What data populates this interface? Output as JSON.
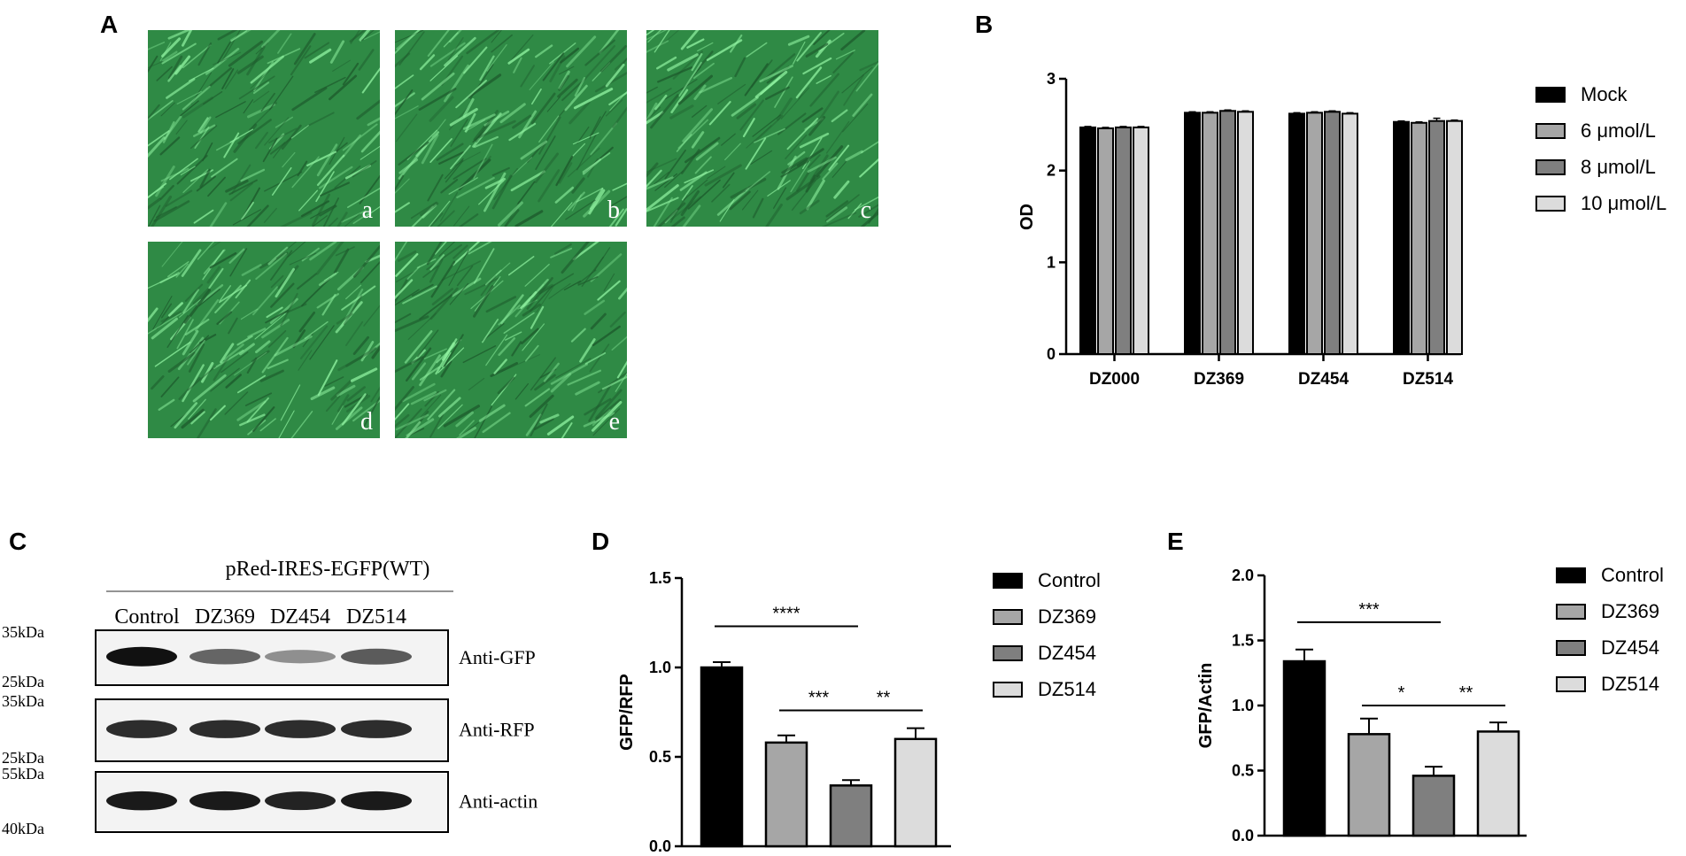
{
  "panels": {
    "A": {
      "letter": "A",
      "images": [
        {
          "label": "a"
        },
        {
          "label": "b"
        },
        {
          "label": "c"
        },
        {
          "label": "d"
        },
        {
          "label": "e"
        }
      ]
    },
    "B": {
      "letter": "B"
    },
    "C": {
      "letter": "C",
      "construct": "pRed-IRES-EGFP(WT)",
      "lanes": [
        "Control",
        "DZ369",
        "DZ454",
        "DZ514"
      ],
      "blots": [
        {
          "label": "Anti-GFP",
          "mw_top": "35kDa",
          "mw_bottom": "25kDa",
          "intensities": [
            1.0,
            0.55,
            0.32,
            0.6
          ]
        },
        {
          "label": "Anti-RFP",
          "mw_top": "35kDa",
          "mw_bottom": "25kDa",
          "intensities": [
            0.85,
            0.85,
            0.85,
            0.85
          ]
        },
        {
          "label": "Anti-actin",
          "mw_top": "55kDa",
          "mw_bottom": "40kDa",
          "intensities": [
            0.95,
            0.95,
            0.9,
            0.95
          ]
        }
      ]
    },
    "D": {
      "letter": "D"
    },
    "E": {
      "letter": "E"
    }
  },
  "colors": {
    "black": "#000000",
    "light_gray": "#a6a6a6",
    "dark_gray": "#7f7f7f",
    "lightest_gray": "#dcdcdc",
    "cell_green": "#2f8a45"
  },
  "chart_data": [
    {
      "id": "B",
      "type": "bar",
      "ylabel": "OD",
      "xlabel": "",
      "ylim": [
        0,
        3
      ],
      "yticks": [
        "0",
        "1",
        "2",
        "3"
      ],
      "categories": [
        "DZ000",
        "DZ369",
        "DZ454",
        "DZ514"
      ],
      "series": [
        {
          "name": "Mock",
          "values": [
            2.47,
            2.63,
            2.62,
            2.53
          ],
          "err": [
            0.01,
            0.01,
            0.01,
            0.01
          ],
          "color": "#000000"
        },
        {
          "name": "6 μmol/L",
          "values": [
            2.46,
            2.63,
            2.63,
            2.52
          ],
          "err": [
            0.01,
            0.01,
            0.01,
            0.01
          ],
          "color": "#a6a6a6"
        },
        {
          "name": "8 μmol/L",
          "values": [
            2.47,
            2.65,
            2.64,
            2.54
          ],
          "err": [
            0.01,
            0.01,
            0.01,
            0.03
          ],
          "color": "#7f7f7f"
        },
        {
          "name": "10 μmol/L",
          "values": [
            2.47,
            2.64,
            2.62,
            2.54
          ],
          "err": [
            0.01,
            0.01,
            0.01,
            0.01
          ],
          "color": "#dcdcdc"
        }
      ],
      "legend": "right"
    },
    {
      "id": "D",
      "type": "bar",
      "ylabel": "GFP/RFP",
      "xlabel": "",
      "ylim": [
        0,
        1.5
      ],
      "yticks": [
        "0.0",
        "0.5",
        "1.0",
        "1.5"
      ],
      "categories": [
        "Control",
        "DZ369",
        "DZ454",
        "DZ514"
      ],
      "values": [
        1.0,
        0.58,
        0.34,
        0.6
      ],
      "err": [
        0.03,
        0.04,
        0.03,
        0.06
      ],
      "colors": [
        "#000000",
        "#a6a6a6",
        "#7f7f7f",
        "#dcdcdc"
      ],
      "significance": [
        {
          "from": 0,
          "to": 2,
          "y": 1.23,
          "label": "****"
        },
        {
          "from": 1,
          "to": 2,
          "y": 0.76,
          "label": "***"
        },
        {
          "from": 2,
          "to": 3,
          "y": 0.76,
          "label": "**"
        }
      ],
      "legend": "right"
    },
    {
      "id": "E",
      "type": "bar",
      "ylabel": "GFP/Actin",
      "xlabel": "",
      "ylim": [
        0,
        2.0
      ],
      "yticks": [
        "0.0",
        "0.5",
        "1.0",
        "1.5",
        "2.0"
      ],
      "categories": [
        "Control",
        "DZ369",
        "DZ454",
        "DZ514"
      ],
      "values": [
        1.34,
        0.78,
        0.46,
        0.8
      ],
      "err": [
        0.09,
        0.12,
        0.07,
        0.07
      ],
      "colors": [
        "#000000",
        "#a6a6a6",
        "#7f7f7f",
        "#dcdcdc"
      ],
      "significance": [
        {
          "from": 0,
          "to": 2,
          "y": 1.64,
          "label": "***"
        },
        {
          "from": 1,
          "to": 2,
          "y": 1.0,
          "label": "*"
        },
        {
          "from": 2,
          "to": 3,
          "y": 1.0,
          "label": "**"
        }
      ],
      "legend": "right"
    }
  ]
}
